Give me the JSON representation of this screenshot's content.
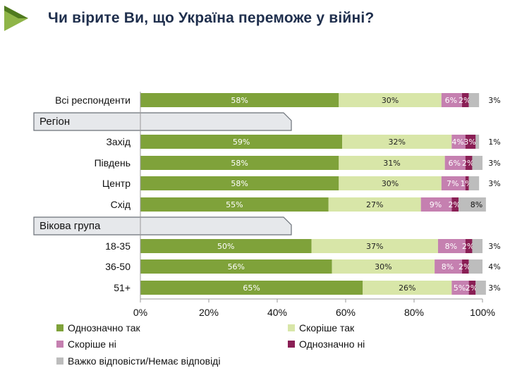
{
  "title": "Чи вірите Ви, що Україна переможе у війні?",
  "colors": {
    "title": "#1f2f4d",
    "logo_dark": "#4f7a1f",
    "logo_light": "#8fb548",
    "group_box_fill": "#e6e8eb",
    "group_box_stroke": "#6b7078",
    "axis": "#999999"
  },
  "chart_data": {
    "type": "bar",
    "orientation": "horizontal",
    "stacked": true,
    "xlim": [
      0,
      100
    ],
    "xticks": [
      "0%",
      "20%",
      "40%",
      "60%",
      "80%",
      "100%"
    ],
    "categories": [
      "Всі респонденти",
      "Захід",
      "Південь",
      "Центр",
      "Схід",
      "18-35",
      "36-50",
      "51+"
    ],
    "groups": [
      {
        "label": "Регіон",
        "before_category": "Захід"
      },
      {
        "label": "Вікова група",
        "before_category": "18-35"
      }
    ],
    "series": [
      {
        "name": "Однозначно так",
        "color": "#7fa23a",
        "label_color": "#ffffff",
        "values": [
          58,
          59,
          58,
          58,
          55,
          50,
          56,
          65
        ],
        "labels": [
          "58%",
          "59%",
          "58%",
          "58%",
          "55%",
          "50%",
          "56%",
          "65%"
        ]
      },
      {
        "name": "Скоріше так",
        "color": "#d8e6a8",
        "label_color": "#222222",
        "values": [
          30,
          32,
          31,
          30,
          27,
          37,
          30,
          26
        ],
        "labels": [
          "30%",
          "32%",
          "31%",
          "30%",
          "27%",
          "37%",
          "30%",
          "26%"
        ]
      },
      {
        "name": "Скоріше ні",
        "color": "#c580b0",
        "label_color": "#ffffff",
        "values": [
          6,
          4,
          6,
          7,
          9,
          8,
          8,
          5
        ],
        "labels": [
          "6%",
          "4%",
          "6%",
          "7%",
          "9%",
          "8%",
          "8%",
          "5%"
        ]
      },
      {
        "name": "Однозначно ні",
        "color": "#8a1f55",
        "label_color": "#ffffff",
        "values": [
          2,
          3,
          2,
          1,
          2,
          2,
          2,
          2
        ],
        "labels": [
          "2%",
          "3%",
          "2%",
          "1%",
          "2%",
          "2%",
          "2%",
          "2%"
        ]
      },
      {
        "name": "Важко відповісти/Немає відповіді",
        "color": "#bdbdbd",
        "label_color": "#111111",
        "values": [
          3,
          1,
          3,
          3,
          8,
          3,
          4,
          3
        ],
        "labels": [
          "3%",
          "1%",
          "3%",
          "3%",
          "8%",
          "3%",
          "4%",
          "3%"
        ]
      }
    ],
    "legend_position": "bottom"
  }
}
